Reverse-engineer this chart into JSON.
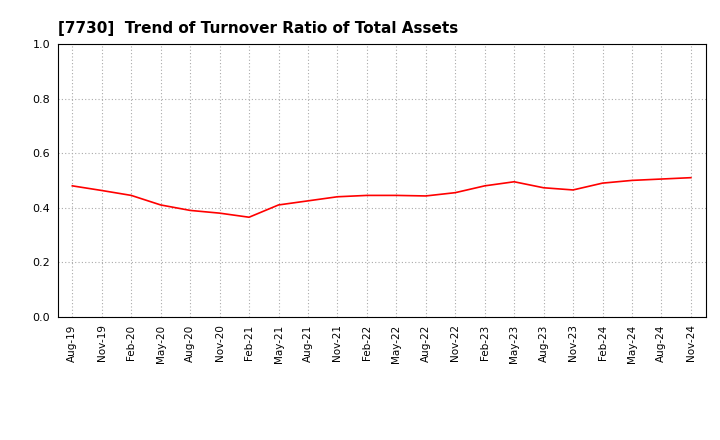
{
  "title": "[7730]  Trend of Turnover Ratio of Total Assets",
  "title_fontsize": 11,
  "line_color": "#FF0000",
  "line_width": 1.2,
  "background_color": "#FFFFFF",
  "plot_bg_color": "#FFFFFF",
  "ylim": [
    0.0,
    1.0
  ],
  "yticks": [
    0.0,
    0.2,
    0.4,
    0.6,
    0.8,
    1.0
  ],
  "grid_color": "#AAAAAA",
  "x_labels": [
    "Aug-19",
    "Nov-19",
    "Feb-20",
    "May-20",
    "Aug-20",
    "Nov-20",
    "Feb-21",
    "May-21",
    "Aug-21",
    "Nov-21",
    "Feb-22",
    "May-22",
    "Aug-22",
    "Nov-22",
    "Feb-23",
    "May-23",
    "Aug-23",
    "Nov-23",
    "Feb-24",
    "May-24",
    "Aug-24",
    "Nov-24"
  ],
  "values": [
    0.48,
    0.463,
    0.445,
    0.41,
    0.39,
    0.38,
    0.365,
    0.41,
    0.425,
    0.44,
    0.445,
    0.445,
    0.443,
    0.455,
    0.48,
    0.495,
    0.473,
    0.465,
    0.49,
    0.5,
    0.505,
    0.51
  ]
}
